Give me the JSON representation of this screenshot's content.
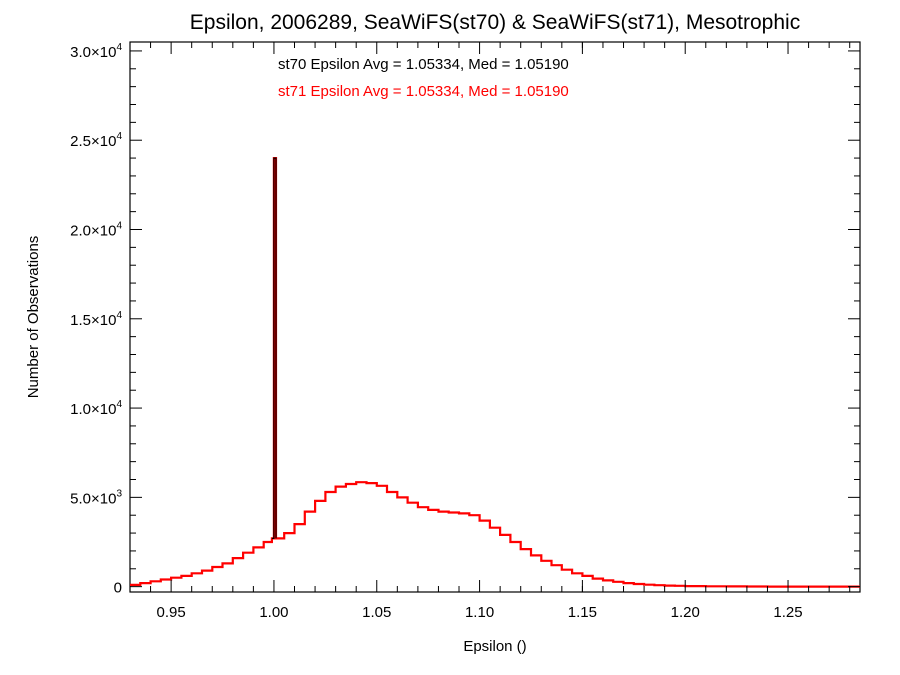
{
  "chart_data": {
    "type": "line",
    "title": "Epsilon, 2006289, SeaWiFS(st70) & SeaWiFS(st71), Mesotrophic",
    "xlabel": "Epsilon ()",
    "ylabel": "Number of Observations",
    "xlim": [
      0.93,
      1.285
    ],
    "ylim": [
      -300,
      30500
    ],
    "grid": false,
    "x_ticks": [
      {
        "value": 0.95,
        "label": "0.95"
      },
      {
        "value": 1.0,
        "label": "1.00"
      },
      {
        "value": 1.05,
        "label": "1.05"
      },
      {
        "value": 1.1,
        "label": "1.10"
      },
      {
        "value": 1.15,
        "label": "1.15"
      },
      {
        "value": 1.2,
        "label": "1.20"
      },
      {
        "value": 1.25,
        "label": "1.25"
      }
    ],
    "y_ticks": [
      {
        "value": 0,
        "mant": "0",
        "exp": ""
      },
      {
        "value": 5000,
        "mant": "5.0×10",
        "exp": "3"
      },
      {
        "value": 10000,
        "mant": "1.0×10",
        "exp": "4"
      },
      {
        "value": 15000,
        "mant": "1.5×10",
        "exp": "4"
      },
      {
        "value": 20000,
        "mant": "2.0×10",
        "exp": "4"
      },
      {
        "value": 25000,
        "mant": "2.5×10",
        "exp": "4"
      },
      {
        "value": 30000,
        "mant": "3.0×10",
        "exp": "4"
      }
    ],
    "annotations": [
      {
        "text": "st70 Epsilon Avg = 1.05334, Med = 1.05190",
        "color": "#000000"
      },
      {
        "text": "st71 Epsilon Avg = 1.05334, Med = 1.05190",
        "color": "#ff0000"
      }
    ],
    "series": [
      {
        "color": "#ff0000",
        "x": [
          0.93,
          0.935,
          0.94,
          0.945,
          0.95,
          0.955,
          0.96,
          0.965,
          0.97,
          0.975,
          0.98,
          0.985,
          0.99,
          0.995,
          0.999,
          1.0,
          1.001,
          1.005,
          1.01,
          1.015,
          1.02,
          1.025,
          1.03,
          1.035,
          1.04,
          1.045,
          1.05,
          1.055,
          1.06,
          1.065,
          1.07,
          1.075,
          1.08,
          1.085,
          1.09,
          1.095,
          1.1,
          1.105,
          1.11,
          1.115,
          1.12,
          1.125,
          1.13,
          1.135,
          1.14,
          1.145,
          1.15,
          1.155,
          1.16,
          1.165,
          1.17,
          1.175,
          1.18,
          1.185,
          1.19,
          1.195,
          1.2,
          1.21,
          1.22,
          1.23,
          1.24,
          1.25,
          1.26,
          1.27,
          1.285
        ],
        "y": [
          100,
          200,
          300,
          400,
          500,
          600,
          750,
          900,
          1100,
          1300,
          1600,
          1900,
          2200,
          2500,
          2700,
          24000,
          2700,
          3000,
          3500,
          4200,
          4800,
          5300,
          5600,
          5750,
          5850,
          5800,
          5650,
          5300,
          5000,
          4700,
          4450,
          4300,
          4200,
          4150,
          4100,
          4000,
          3700,
          3300,
          2900,
          2500,
          2100,
          1750,
          1450,
          1200,
          950,
          750,
          600,
          450,
          350,
          270,
          200,
          150,
          110,
          80,
          60,
          45,
          30,
          20,
          12,
          8,
          5,
          3,
          2,
          1,
          0
        ]
      },
      {
        "color": "#000000",
        "x": [
          0.999,
          1.0,
          1.001
        ],
        "y": [
          2700,
          24000,
          2700
        ]
      }
    ]
  }
}
